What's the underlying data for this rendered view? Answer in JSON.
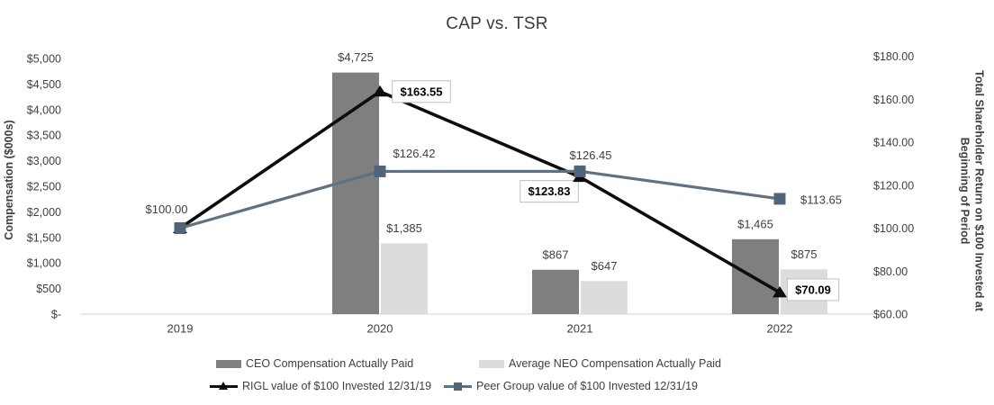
{
  "chart": {
    "title": "CAP vs. TSR",
    "left_axis": {
      "title": "Compensation ($000s)",
      "tick_labels": [
        "$5,000",
        "$4,500",
        "$4,000",
        "$3,500",
        "$3,000",
        "$2,500",
        "$2,000",
        "$1,500",
        "$1,000",
        "$500",
        "$-"
      ],
      "tick_values": [
        5000,
        4500,
        4000,
        3500,
        3000,
        2500,
        2000,
        1500,
        1000,
        500,
        0
      ],
      "min": 0,
      "max": 5000
    },
    "right_axis": {
      "title_line1": "Total Shareholder Return on $100 Invested at",
      "title_line2": "Beginning of Period",
      "tick_labels": [
        "$180.00",
        "$160.00",
        "$140.00",
        "$120.00",
        "$100.00",
        "$80.00",
        "$60.00"
      ],
      "tick_values": [
        180,
        160,
        140,
        120,
        100,
        80,
        60
      ],
      "min": 60,
      "max": 180
    }
  },
  "chart_data": {
    "type": "combo",
    "subtypes": [
      "bar",
      "line"
    ],
    "title": "CAP vs. TSR",
    "categories": [
      "2019",
      "2020",
      "2021",
      "2022"
    ],
    "grid": false,
    "legend_position": "bottom",
    "left_axis_range": [
      0,
      5000
    ],
    "right_axis_range": [
      60,
      180
    ],
    "series": [
      {
        "name": "CEO Compensation Actually Paid",
        "type": "bar",
        "axis": "left",
        "color": "#7f7f7f",
        "values": [
          null,
          4725,
          867,
          1465
        ],
        "labels": [
          null,
          "$4,725",
          "$867",
          "$1,465"
        ]
      },
      {
        "name": "Average NEO Compensation Actually Paid",
        "type": "bar",
        "axis": "left",
        "color": "#dcdcdc",
        "values": [
          null,
          1385,
          647,
          875
        ],
        "labels": [
          null,
          "$1,385",
          "$647",
          "$875"
        ]
      },
      {
        "name": "RIGL value of $100 Invested 12/31/19",
        "type": "line",
        "axis": "right",
        "color": "#0d0d0d",
        "marker": "triangle",
        "marker_color": "#0d0d0d",
        "stroke_width": 3.6,
        "label_color": "#3f3f3f",
        "values": [
          100,
          163.55,
          123.83,
          70.09
        ],
        "labels": [
          "$100.00",
          "$163.55",
          "$123.83",
          "$70.09"
        ],
        "label_boxed": [
          false,
          true,
          true,
          true
        ],
        "label_dx": [
          -15,
          46,
          -34,
          37
        ],
        "label_dy": [
          -21,
          0,
          16,
          -3
        ]
      },
      {
        "name": "Peer Group value of $100 Invested 12/31/19",
        "type": "line",
        "axis": "right",
        "color": "#5f7282",
        "marker": "square",
        "marker_color": "#50657a",
        "stroke_width": 3.2,
        "label_color": "#7d8c9b",
        "values": [
          100,
          126.42,
          126.45,
          113.65
        ],
        "labels": [
          null,
          "$126.42",
          "$126.45",
          "$113.65"
        ],
        "label_boxed": [
          false,
          false,
          false,
          false
        ],
        "label_dx": [
          0,
          38,
          12,
          46
        ],
        "label_dy": [
          0,
          -20,
          -18,
          1
        ]
      }
    ]
  }
}
